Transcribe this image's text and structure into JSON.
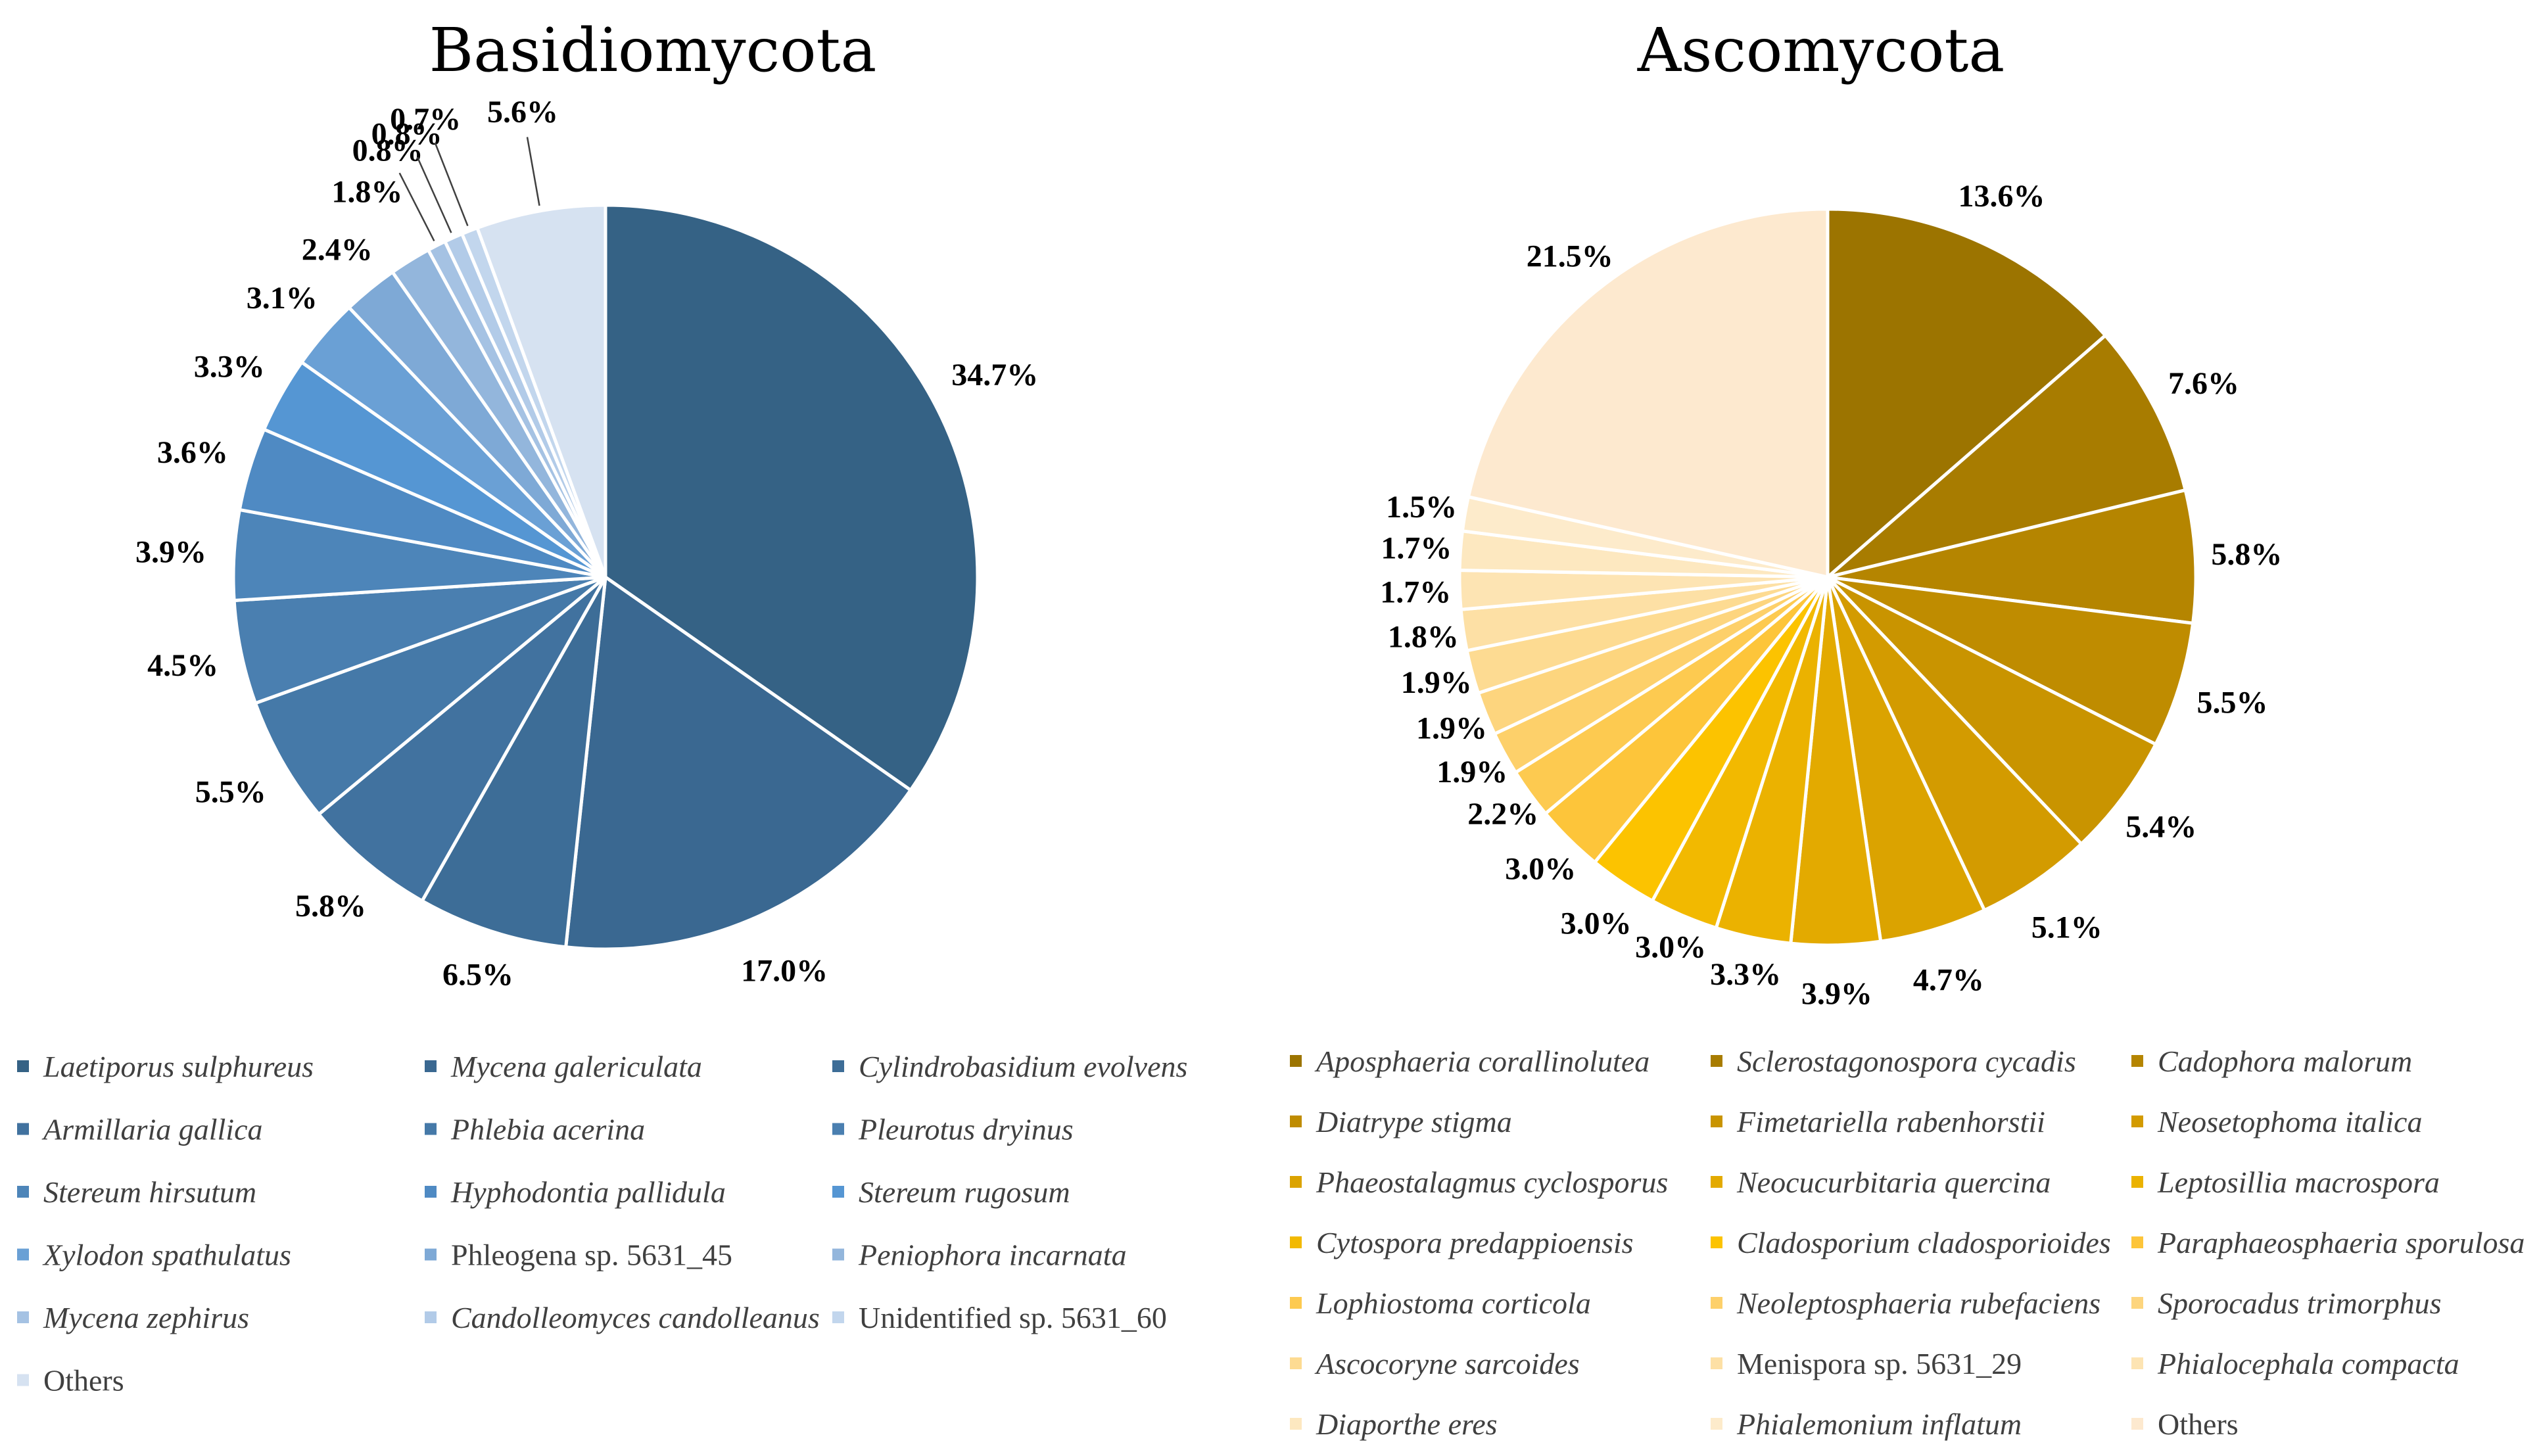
{
  "chart_data": [
    {
      "type": "pie",
      "title": "Basidiomycota",
      "start": "12 o'clock, clockwise",
      "slices": [
        {
          "label": "Laetiporus sulphureus",
          "italic": true,
          "value": 34.7,
          "value_label": "34.7%",
          "color": "#356285"
        },
        {
          "label": "Mycena galericulata",
          "italic": true,
          "value": 17.0,
          "value_label": "17.0%",
          "color": "#3a6891"
        },
        {
          "label": "Cylindrobasidium evolvens",
          "italic": true,
          "value": 6.5,
          "value_label": "6.5%",
          "color": "#3d6d97"
        },
        {
          "label": "Armillaria gallica",
          "italic": true,
          "value": 5.8,
          "value_label": "5.8%",
          "color": "#41729f"
        },
        {
          "label": "Phlebia acerina",
          "italic": true,
          "value": 5.5,
          "value_label": "5.5%",
          "color": "#4579a8"
        },
        {
          "label": "Pleurotus dryinus",
          "italic": true,
          "value": 4.5,
          "value_label": "4.5%",
          "color": "#4a7fb0"
        },
        {
          "label": "Stereum hirsutum",
          "italic": true,
          "value": 3.9,
          "value_label": "3.9%",
          "color": "#4d85b9"
        },
        {
          "label": "Hyphodontia pallidula",
          "italic": true,
          "value": 3.6,
          "value_label": "3.6%",
          "color": "#4f8ac3"
        },
        {
          "label": "Stereum rugosum",
          "italic": true,
          "value": 3.3,
          "value_label": "3.3%",
          "color": "#5596d3"
        },
        {
          "label": "Xylodon spathulatus",
          "italic": true,
          "value": 3.1,
          "value_label": "3.1%",
          "color": "#6aa0d5"
        },
        {
          "label": "Phleogena sp. 5631_45",
          "italic": false,
          "value": 2.4,
          "value_label": "2.4%",
          "color": "#7ea9d6"
        },
        {
          "label": "Peniophora incarnata",
          "italic": true,
          "value": 1.8,
          "value_label": "1.8%",
          "color": "#93b6dc"
        },
        {
          "label": "Mycena zephirus",
          "italic": true,
          "value": 0.8,
          "value_label": "0.8%",
          "color": "#a5c2e3"
        },
        {
          "label": "Candolleomyces candolleanus",
          "italic": true,
          "value": 0.8,
          "value_label": "0.8%",
          "color": "#b2cbe8"
        },
        {
          "label": "Unidentified sp. 5631_60",
          "italic": false,
          "value": 0.7,
          "value_label": "0.7%",
          "color": "#c2d6ed"
        },
        {
          "label": "Others",
          "italic": false,
          "value": 5.6,
          "value_label": "5.6%",
          "color": "#d6e2f1"
        }
      ]
    },
    {
      "type": "pie",
      "title": "Ascomycota",
      "start": "12 o'clock, clockwise",
      "slices": [
        {
          "label": "Aposphaeria corallinolutea",
          "italic": true,
          "value": 13.6,
          "value_label": "13.6%",
          "color": "#9c7400"
        },
        {
          "label": "Sclerostagonospora cycadis",
          "italic": true,
          "value": 7.6,
          "value_label": "7.6%",
          "color": "#a87c00"
        },
        {
          "label": "Cadophora malorum",
          "italic": true,
          "value": 5.8,
          "value_label": "5.8%",
          "color": "#b58500"
        },
        {
          "label": "Diatrype stigma",
          "italic": true,
          "value": 5.5,
          "value_label": "5.5%",
          "color": "#bf8c00"
        },
        {
          "label": "Fimetariella rabenhorstii",
          "italic": true,
          "value": 5.4,
          "value_label": "5.4%",
          "color": "#c99400"
        },
        {
          "label": "Neosetophoma italica",
          "italic": true,
          "value": 5.1,
          "value_label": "5.1%",
          "color": "#d39b00"
        },
        {
          "label": "Phaeostalagmus cyclosporus",
          "italic": true,
          "value": 4.7,
          "value_label": "4.7%",
          "color": "#dba300"
        },
        {
          "label": "Neocucurbitaria quercina",
          "italic": true,
          "value": 3.9,
          "value_label": "3.9%",
          "color": "#e3aa00"
        },
        {
          "label": "Leptosillia macrospora",
          "italic": true,
          "value": 3.3,
          "value_label": "3.3%",
          "color": "#ebb200"
        },
        {
          "label": "Cytospora predappioensis",
          "italic": true,
          "value": 3.0,
          "value_label": "3.0%",
          "color": "#f2b900"
        },
        {
          "label": "Cladosporium cladosporioides",
          "italic": true,
          "value": 3.0,
          "value_label": "3.0%",
          "color": "#fcc300"
        },
        {
          "label": "Paraphaeosphaeria sporulosa",
          "italic": true,
          "value": 3.0,
          "value_label": "3.0%",
          "color": "#fdc53a"
        },
        {
          "label": "Lophiostoma corticola",
          "italic": true,
          "value": 2.2,
          "value_label": "2.2%",
          "color": "#fdca50"
        },
        {
          "label": "Neoleptosphaeria rubefaciens",
          "italic": true,
          "value": 1.9,
          "value_label": "1.9%",
          "color": "#fdd06a"
        },
        {
          "label": "Sporocadus trimorphus",
          "italic": true,
          "value": 1.9,
          "value_label": "1.9%",
          "color": "#fdd57e"
        },
        {
          "label": "Ascocoryne sarcoides",
          "italic": true,
          "value": 1.9,
          "value_label": "1.9%",
          "color": "#fddb92"
        },
        {
          "label": "Menispora sp. 5631_29",
          "italic": false,
          "value": 1.8,
          "value_label": "1.8%",
          "color": "#fde0a5"
        },
        {
          "label": "Phialocephala compacta",
          "italic": true,
          "value": 1.7,
          "value_label": "1.7%",
          "color": "#fde4b3"
        },
        {
          "label": "Diaporthe eres",
          "italic": true,
          "value": 1.7,
          "value_label": "1.7%",
          "color": "#fde8c0"
        },
        {
          "label": "Phialemonium inflatum",
          "italic": true,
          "value": 1.5,
          "value_label": "1.5%",
          "color": "#fdebcb"
        },
        {
          "label": "Others",
          "italic": false,
          "value": 21.5,
          "value_label": "21.5%",
          "color": "#fde9cf"
        }
      ]
    }
  ]
}
